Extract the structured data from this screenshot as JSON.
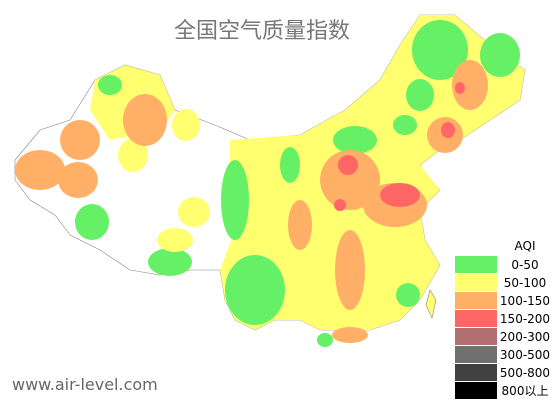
{
  "title": "全国空气质量指数",
  "legend": {
    "title": "AQI",
    "items": [
      {
        "label": "0-50",
        "color": "#66f066"
      },
      {
        "label": "50-100",
        "color": "#ffff70"
      },
      {
        "label": "100-150",
        "color": "#ffb066"
      },
      {
        "label": "150-200",
        "color": "#ff6666"
      },
      {
        "label": "200-300",
        "color": "#b07070"
      },
      {
        "label": "300-500",
        "color": "#707070"
      },
      {
        "label": "500-800",
        "color": "#404040"
      },
      {
        "label": "800以上",
        "color": "#000000"
      }
    ]
  },
  "source": "www.air-level.com"
}
